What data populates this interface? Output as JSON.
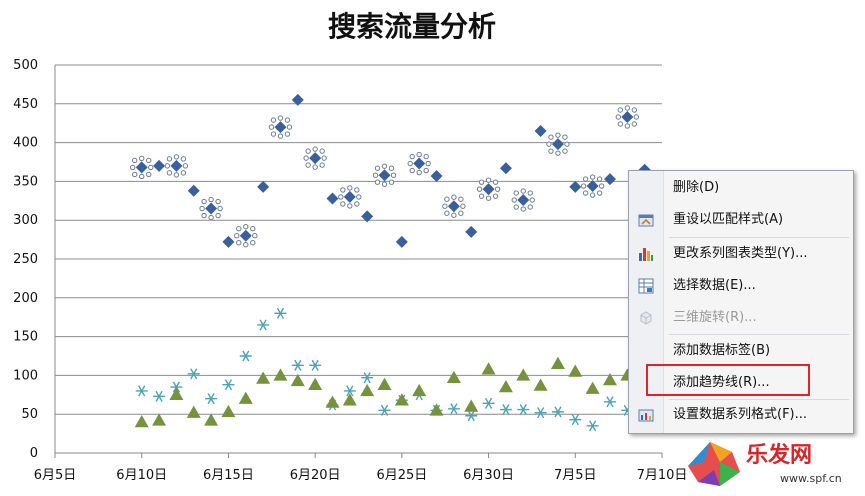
{
  "chart_data": {
    "type": "scatter",
    "title": "搜索流量分析",
    "x_tick_labels": [
      "6月5日",
      "6月10日",
      "6月15日",
      "6月20日",
      "6月25日",
      "6月30日",
      "7月5日",
      "7月10日"
    ],
    "y_tick_labels": [
      "0",
      "50",
      "100",
      "150",
      "200",
      "250",
      "300",
      "350",
      "400",
      "450",
      "500"
    ],
    "xlim": [
      "6月5日",
      "7月10日"
    ],
    "ylim": [
      0,
      500
    ],
    "grid": "horizontal",
    "series": [
      {
        "marker": "diamond",
        "color": "#3a5f9e",
        "points": [
          [
            "6月10日",
            368
          ],
          [
            "6月11日",
            370
          ],
          [
            "6月12日",
            370
          ],
          [
            "6月13日",
            338
          ],
          [
            "6月14日",
            315
          ],
          [
            "6月15日",
            272
          ],
          [
            "6月16日",
            280
          ],
          [
            "6月17日",
            343
          ],
          [
            "6月18日",
            420
          ],
          [
            "6月19日",
            455
          ],
          [
            "6月20日",
            380
          ],
          [
            "6月21日",
            328
          ],
          [
            "6月22日",
            330
          ],
          [
            "6月23日",
            305
          ],
          [
            "6月24日",
            358
          ],
          [
            "6月25日",
            272
          ],
          [
            "6月26日",
            373
          ],
          [
            "6月27日",
            357
          ],
          [
            "6月28日",
            318
          ],
          [
            "6月29日",
            285
          ],
          [
            "6月30日",
            340
          ],
          [
            "7月1日",
            367
          ],
          [
            "7月2日",
            326
          ],
          [
            "7月3日",
            415
          ],
          [
            "7月4日",
            398
          ],
          [
            "7月5日",
            343
          ],
          [
            "7月6日",
            344
          ],
          [
            "7月7日",
            353
          ],
          [
            "7月8日",
            433
          ],
          [
            "7月9日",
            365
          ]
        ]
      },
      {
        "marker": "asterisk",
        "color": "#4aa3b8",
        "points": [
          [
            "6月10日",
            80
          ],
          [
            "6月11日",
            73
          ],
          [
            "6月12日",
            85
          ],
          [
            "6月13日",
            102
          ],
          [
            "6月14日",
            70
          ],
          [
            "6月15日",
            88
          ],
          [
            "6月16日",
            125
          ],
          [
            "6月17日",
            165
          ],
          [
            "6月18日",
            180
          ],
          [
            "6月19日",
            113
          ],
          [
            "6月20日",
            113
          ],
          [
            "6月21日",
            62
          ],
          [
            "6月22日",
            80
          ],
          [
            "6月23日",
            97
          ],
          [
            "6月24日",
            55
          ],
          [
            "6月25日",
            68
          ],
          [
            "6月26日",
            75
          ],
          [
            "6月27日",
            55
          ],
          [
            "6月28日",
            57
          ],
          [
            "6月29日",
            48
          ],
          [
            "6月30日",
            64
          ],
          [
            "7月1日",
            56
          ],
          [
            "7月2日",
            56
          ],
          [
            "7月3日",
            52
          ],
          [
            "7月4日",
            53
          ],
          [
            "7月5日",
            43
          ],
          [
            "7月6日",
            35
          ],
          [
            "7月7日",
            66
          ],
          [
            "7月8日",
            55
          ]
        ]
      },
      {
        "marker": "triangle",
        "color": "#77923c",
        "points": [
          [
            "6月10日",
            40
          ],
          [
            "6月11日",
            42
          ],
          [
            "6月12日",
            75
          ],
          [
            "6月13日",
            52
          ],
          [
            "6月14日",
            42
          ],
          [
            "6月15日",
            53
          ],
          [
            "6月16日",
            70
          ],
          [
            "6月17日",
            96
          ],
          [
            "6月18日",
            100
          ],
          [
            "6月19日",
            93
          ],
          [
            "6月20日",
            88
          ],
          [
            "6月21日",
            65
          ],
          [
            "6月22日",
            68
          ],
          [
            "6月23日",
            80
          ],
          [
            "6月24日",
            88
          ],
          [
            "6月25日",
            68
          ],
          [
            "6月26日",
            80
          ],
          [
            "6月27日",
            55
          ],
          [
            "6月28日",
            97
          ],
          [
            "6月29日",
            60
          ],
          [
            "6月30日",
            108
          ],
          [
            "7月1日",
            85
          ],
          [
            "7月2日",
            100
          ],
          [
            "7月3日",
            87
          ],
          [
            "7月4日",
            115
          ],
          [
            "7月5日",
            105
          ],
          [
            "7月6日",
            83
          ],
          [
            "7月7日",
            94
          ],
          [
            "7月8日",
            100
          ]
        ]
      }
    ]
  },
  "context_menu": {
    "items": [
      {
        "label": "删除(D)",
        "icon": "none",
        "enabled": true
      },
      {
        "label": "重设以匹配样式(A)",
        "icon": "reset-style-icon",
        "enabled": true
      },
      {
        "label": "更改系列图表类型(Y)...",
        "icon": "bar-chart-icon",
        "enabled": true
      },
      {
        "label": "选择数据(E)...",
        "icon": "select-data-icon",
        "enabled": true
      },
      {
        "label": "三维旋转(R)...",
        "icon": "rotate-3d-icon",
        "enabled": false
      },
      {
        "label": "添加数据标签(B)",
        "icon": "none",
        "enabled": true
      },
      {
        "label": "添加趋势线(R)...",
        "icon": "none",
        "enabled": true
      },
      {
        "label": "设置数据系列格式(F)...",
        "icon": "format-series-icon",
        "enabled": true
      }
    ]
  },
  "watermark": {
    "brand_text": "乐发网",
    "url_text": "www.spf.cn"
  }
}
